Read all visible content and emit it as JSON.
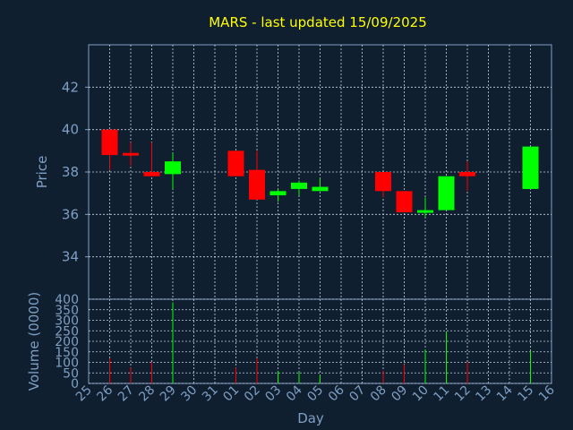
{
  "chart_data": [
    {
      "type": "candlestick",
      "title": "MARS - last updated 15/09/2025",
      "ylabel": "Price",
      "xlabel": "Day",
      "ylim": [
        32.0,
        44.0
      ],
      "yticks": [
        34,
        36,
        38,
        40,
        42
      ],
      "grid": true,
      "categories": [
        "25",
        "26",
        "27",
        "28",
        "29",
        "30",
        "31",
        "01",
        "02",
        "03",
        "04",
        "05",
        "06",
        "07",
        "08",
        "09",
        "10",
        "11",
        "12",
        "13",
        "14",
        "15",
        "16"
      ],
      "candles": [
        {
          "day": "26",
          "open": 40.0,
          "high": 40.0,
          "low": 38.1,
          "close": 38.8
        },
        {
          "day": "27",
          "open": 38.9,
          "high": 39.4,
          "low": 38.3,
          "close": 38.8
        },
        {
          "day": "28",
          "open": 38.0,
          "high": 39.4,
          "low": 37.8,
          "close": 37.8
        },
        {
          "day": "29",
          "open": 37.9,
          "high": 38.9,
          "low": 37.2,
          "close": 38.5
        },
        {
          "day": "01",
          "open": 39.0,
          "high": 39.0,
          "low": 37.8,
          "close": 37.8
        },
        {
          "day": "02",
          "open": 38.1,
          "high": 39.0,
          "low": 36.7,
          "close": 36.7
        },
        {
          "day": "03",
          "open": 36.9,
          "high": 37.2,
          "low": 36.6,
          "close": 37.1
        },
        {
          "day": "04",
          "open": 37.2,
          "high": 37.6,
          "low": 36.9,
          "close": 37.5
        },
        {
          "day": "05",
          "open": 37.1,
          "high": 37.7,
          "low": 37.1,
          "close": 37.3
        },
        {
          "day": "08",
          "open": 38.0,
          "high": 38.0,
          "low": 36.8,
          "close": 37.1
        },
        {
          "day": "09",
          "open": 37.1,
          "high": 37.1,
          "low": 36.1,
          "close": 36.1
        },
        {
          "day": "10",
          "open": 36.1,
          "high": 36.8,
          "low": 35.9,
          "close": 36.2
        },
        {
          "day": "11",
          "open": 36.2,
          "high": 37.8,
          "low": 36.2,
          "close": 37.8
        },
        {
          "day": "12",
          "open": 38.0,
          "high": 38.5,
          "low": 37.1,
          "close": 37.8
        },
        {
          "day": "15",
          "open": 37.2,
          "high": 39.2,
          "low": 37.2,
          "close": 39.2
        }
      ],
      "colors": {
        "up": "#00ff00",
        "down": "#ff0000"
      }
    },
    {
      "type": "bar",
      "ylabel": "Volume (0000)",
      "ylim": [
        0,
        400
      ],
      "yticks": [
        0,
        50,
        100,
        150,
        200,
        250,
        300,
        350,
        400
      ],
      "grid": true,
      "bars": [
        {
          "day": "26",
          "value": 120,
          "color": "#ff0000"
        },
        {
          "day": "27",
          "value": 75,
          "color": "#ff0000"
        },
        {
          "day": "28",
          "value": 100,
          "color": "#ff0000"
        },
        {
          "day": "29",
          "value": 385,
          "color": "#00ff00"
        },
        {
          "day": "01",
          "value": 75,
          "color": "#ff0000"
        },
        {
          "day": "02",
          "value": 120,
          "color": "#ff0000"
        },
        {
          "day": "03",
          "value": 60,
          "color": "#00ff00"
        },
        {
          "day": "04",
          "value": 55,
          "color": "#00ff00"
        },
        {
          "day": "05",
          "value": 40,
          "color": "#00ff00"
        },
        {
          "day": "08",
          "value": 60,
          "color": "#ff0000"
        },
        {
          "day": "09",
          "value": 90,
          "color": "#ff0000"
        },
        {
          "day": "10",
          "value": 160,
          "color": "#00ff00"
        },
        {
          "day": "11",
          "value": 245,
          "color": "#00ff00"
        },
        {
          "day": "12",
          "value": 100,
          "color": "#ff0000"
        },
        {
          "day": "15",
          "value": 155,
          "color": "#00ff00"
        }
      ]
    }
  ]
}
